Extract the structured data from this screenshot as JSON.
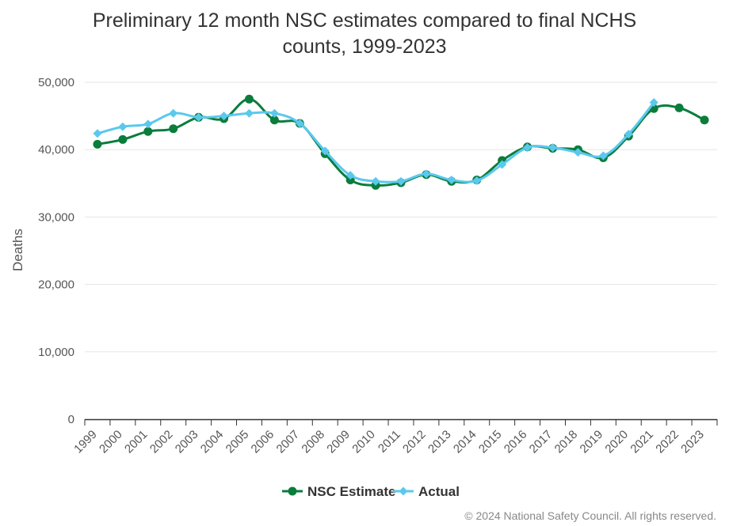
{
  "chart_data": {
    "type": "line",
    "title_lines": [
      "Preliminary 12 month NSC estimates compared to final NCHS",
      "counts, 1999-2023"
    ],
    "ylabel": "Deaths",
    "xlabel": "",
    "ylim": [
      0,
      50000
    ],
    "y_ticks": [
      0,
      10000,
      20000,
      30000,
      40000,
      50000
    ],
    "y_tick_labels": [
      "0",
      "10,000",
      "20,000",
      "30,000",
      "40,000",
      "50,000"
    ],
    "grid": true,
    "legend_position": "bottom",
    "categories": [
      "1999",
      "2000",
      "2001",
      "2002",
      "2003",
      "2004",
      "2005",
      "2006",
      "2007",
      "2008",
      "2009",
      "2010",
      "2011",
      "2012",
      "2013",
      "2014",
      "2015",
      "2016",
      "2017",
      "2018",
      "2019",
      "2020",
      "2021",
      "2022",
      "2023"
    ],
    "series": [
      {
        "name": "NSC Estimate",
        "color": "#0a7d3c",
        "marker": "circle",
        "values": [
          40800,
          41500,
          42700,
          43100,
          44800,
          44600,
          47500,
          44400,
          43900,
          39400,
          35500,
          34700,
          35100,
          36300,
          35300,
          35500,
          38400,
          40400,
          40200,
          40000,
          38800,
          42000,
          46100,
          46200,
          44400
        ]
      },
      {
        "name": "Actual",
        "color": "#5bc8ee",
        "marker": "diamond",
        "values": [
          42400,
          43400,
          43800,
          45400,
          44800,
          45000,
          45400,
          45400,
          43900,
          39800,
          36200,
          35300,
          35300,
          36400,
          35500,
          35400,
          37800,
          40300,
          40300,
          39600,
          39100,
          42300,
          47000,
          null,
          null
        ]
      }
    ],
    "credit": "© 2024 National Safety Council. All rights reserved."
  }
}
